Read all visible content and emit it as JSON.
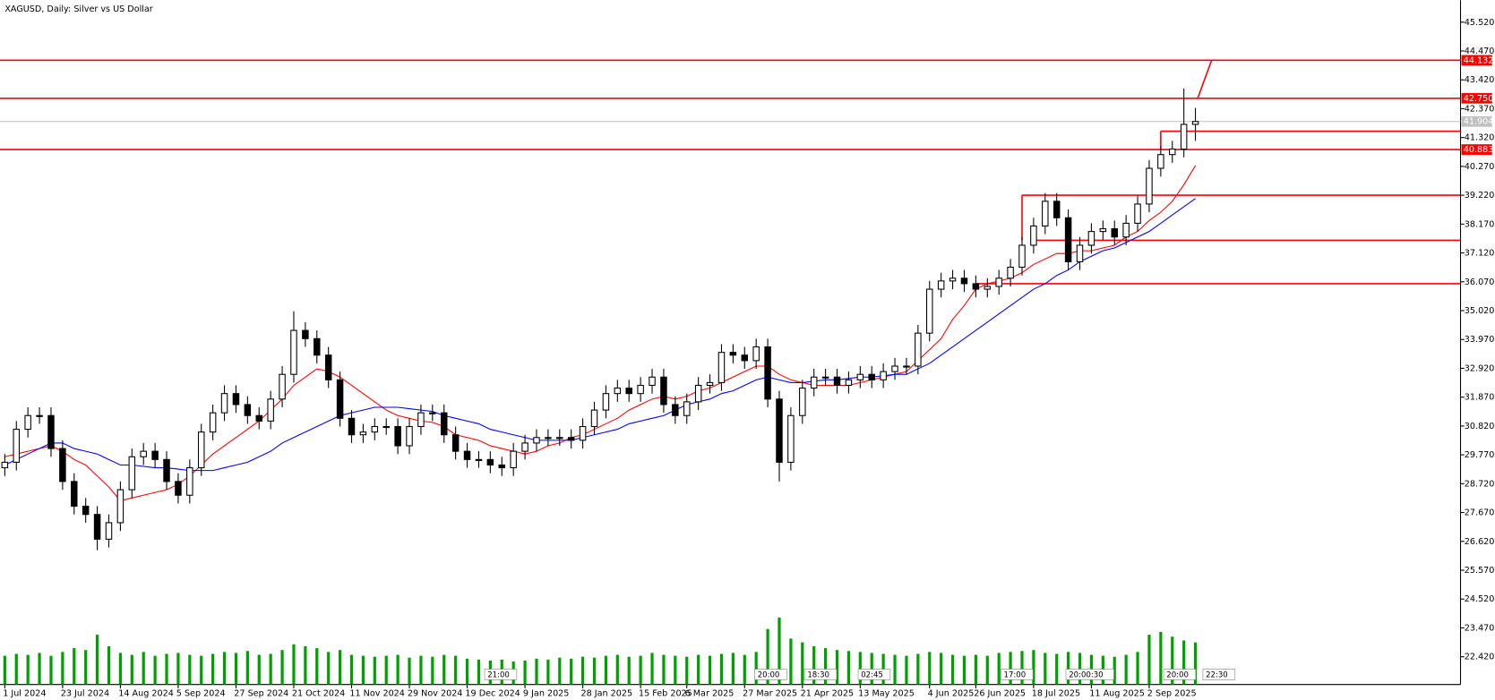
{
  "chart_data": {
    "type": "candlestick",
    "title": "XAGUSD, Daily:  Silver vs US Dollar",
    "categories": [
      "1 Jul 2024",
      null,
      null,
      null,
      null,
      "23 Jul 2024",
      null,
      null,
      null,
      null,
      "14 Aug 2024",
      null,
      null,
      null,
      null,
      "5 Sep 2024",
      null,
      null,
      null,
      null,
      "27 Sep 2024",
      null,
      null,
      null,
      null,
      "21 Oct 2024",
      null,
      null,
      null,
      null,
      "11 Nov 2024",
      null,
      null,
      null,
      null,
      "29 Nov 2024",
      null,
      null,
      null,
      null,
      "19 Dec 2024",
      null,
      null,
      null,
      null,
      "9 Jan 2025",
      null,
      null,
      null,
      null,
      "28 Jan 2025",
      null,
      null,
      null,
      null,
      "15 Feb 2025",
      null,
      null,
      null,
      "6 Mar 2025",
      null,
      null,
      null,
      null,
      "27 Mar 2025",
      null,
      null,
      null,
      null,
      "21 Apr 2025",
      null,
      null,
      null,
      null,
      "13 May 2025",
      null,
      null,
      null,
      null,
      null,
      "4 Jun 2025",
      null,
      null,
      null,
      "26 Jun 2025",
      null,
      null,
      null,
      null,
      "18 Jul 2025",
      null,
      null,
      null,
      null,
      "11 Aug 2025",
      null,
      null,
      null,
      null,
      "2 Sep 2025",
      null,
      null,
      null,
      null
    ],
    "open": [
      29.3,
      29.5,
      30.7,
      31.2,
      31.2,
      30.0,
      28.8,
      27.9,
      27.6,
      26.7,
      27.3,
      28.5,
      29.7,
      29.9,
      29.6,
      28.8,
      28.3,
      29.3,
      30.6,
      31.3,
      32.0,
      31.6,
      31.2,
      31.0,
      31.8,
      32.7,
      34.3,
      34.0,
      33.4,
      32.5,
      31.1,
      30.5,
      30.6,
      30.8,
      30.8,
      30.1,
      30.8,
      31.3,
      31.3,
      30.5,
      29.9,
      29.6,
      29.6,
      29.4,
      29.3,
      29.9,
      30.2,
      30.4,
      30.4,
      30.4,
      30.3,
      30.8,
      31.4,
      32.0,
      32.2,
      32.0,
      32.3,
      32.6,
      31.6,
      31.2,
      31.7,
      32.3,
      32.4,
      33.5,
      33.4,
      33.2,
      33.7,
      31.8,
      29.5,
      31.2,
      32.2,
      32.6,
      32.6,
      32.3,
      32.5,
      32.7,
      32.5,
      32.8,
      33.0,
      33.0,
      34.2,
      35.8,
      36.1,
      36.2,
      36.0,
      35.8,
      35.9,
      36.2,
      36.6,
      37.4,
      38.1,
      39.0,
      38.4,
      36.8,
      37.4,
      37.9,
      38.0,
      37.7,
      38.2,
      38.9,
      40.2,
      40.7,
      40.9,
      41.8
    ],
    "high": [
      29.8,
      31.0,
      31.5,
      31.5,
      31.5,
      30.3,
      29.1,
      28.2,
      27.9,
      27.6,
      28.8,
      30.0,
      30.2,
      30.2,
      29.9,
      29.1,
      29.6,
      30.9,
      31.6,
      32.3,
      32.3,
      31.9,
      31.5,
      32.1,
      33.0,
      35.0,
      34.6,
      34.3,
      33.7,
      32.8,
      31.4,
      30.9,
      31.1,
      31.1,
      31.1,
      31.1,
      31.6,
      31.6,
      31.6,
      30.8,
      30.2,
      29.9,
      29.9,
      29.7,
      30.2,
      30.5,
      30.7,
      30.7,
      30.7,
      30.7,
      31.1,
      31.7,
      32.3,
      32.5,
      32.5,
      32.6,
      32.9,
      32.9,
      31.9,
      32.0,
      32.6,
      32.7,
      33.8,
      33.8,
      33.7,
      34.0,
      34.0,
      32.1,
      31.5,
      32.5,
      32.9,
      32.9,
      32.9,
      32.8,
      33.0,
      33.0,
      33.1,
      33.3,
      33.3,
      34.5,
      36.1,
      36.4,
      36.5,
      36.5,
      36.3,
      36.2,
      36.5,
      36.9,
      37.7,
      38.4,
      39.3,
      39.3,
      38.7,
      37.7,
      38.2,
      38.3,
      38.3,
      38.5,
      39.2,
      40.5,
      41.0,
      41.2,
      43.1,
      42.4
    ],
    "low": [
      29.0,
      29.2,
      30.4,
      30.9,
      29.7,
      28.5,
      27.6,
      27.3,
      26.3,
      26.4,
      27.0,
      28.2,
      29.4,
      29.3,
      28.5,
      28.0,
      28.0,
      29.0,
      30.3,
      31.0,
      31.3,
      30.9,
      30.7,
      30.7,
      31.5,
      32.4,
      33.7,
      33.1,
      32.2,
      30.8,
      30.2,
      30.2,
      30.3,
      30.5,
      29.8,
      29.8,
      30.5,
      31.0,
      30.2,
      29.6,
      29.3,
      29.3,
      29.1,
      29.0,
      29.0,
      29.6,
      29.9,
      30.1,
      30.1,
      30.0,
      30.0,
      30.5,
      31.1,
      31.7,
      31.7,
      31.7,
      32.0,
      31.3,
      30.9,
      30.9,
      31.4,
      32.0,
      32.1,
      33.1,
      32.9,
      32.9,
      31.5,
      28.8,
      29.2,
      30.9,
      31.9,
      32.3,
      32.0,
      32.0,
      32.2,
      32.2,
      32.2,
      32.5,
      32.7,
      32.7,
      33.9,
      35.5,
      35.8,
      35.7,
      35.5,
      35.5,
      35.6,
      35.9,
      36.3,
      37.1,
      37.8,
      38.1,
      36.5,
      36.5,
      37.1,
      37.6,
      37.4,
      37.4,
      37.9,
      38.6,
      39.9,
      40.4,
      40.6,
      41.2
    ],
    "close": [
      29.5,
      30.7,
      31.2,
      31.2,
      30.0,
      28.8,
      27.9,
      27.6,
      26.7,
      27.3,
      28.5,
      29.7,
      29.9,
      29.6,
      28.8,
      28.3,
      29.3,
      30.6,
      31.3,
      32.0,
      31.6,
      31.2,
      31.0,
      31.8,
      32.7,
      34.3,
      34.0,
      33.4,
      32.5,
      31.1,
      30.5,
      30.6,
      30.8,
      30.8,
      30.1,
      30.8,
      31.3,
      31.3,
      30.5,
      29.9,
      29.6,
      29.6,
      29.4,
      29.3,
      29.9,
      30.2,
      30.4,
      30.4,
      30.4,
      30.3,
      30.8,
      31.4,
      32.0,
      32.2,
      32.0,
      32.3,
      32.6,
      31.6,
      31.2,
      31.7,
      32.3,
      32.4,
      33.5,
      33.4,
      33.2,
      33.7,
      31.8,
      29.5,
      31.2,
      32.2,
      32.6,
      32.6,
      32.3,
      32.5,
      32.7,
      32.5,
      32.8,
      33.0,
      33.0,
      34.2,
      35.8,
      36.1,
      36.2,
      36.0,
      35.8,
      35.9,
      36.2,
      36.6,
      37.4,
      38.1,
      39.0,
      38.4,
      36.8,
      37.4,
      37.9,
      38.0,
      37.7,
      38.2,
      38.9,
      40.2,
      40.7,
      40.9,
      41.8,
      41.904
    ],
    "volume": [
      30000,
      32000,
      31000,
      33000,
      30000,
      34000,
      38000,
      36000,
      52000,
      40000,
      33000,
      31000,
      34000,
      30000,
      32000,
      33000,
      31000,
      30000,
      32000,
      34000,
      33000,
      35000,
      31000,
      32000,
      36000,
      42000,
      40000,
      38000,
      34000,
      36000,
      31000,
      30000,
      29000,
      30000,
      31000,
      28000,
      30000,
      29000,
      31000,
      30000,
      27000,
      26000,
      25000,
      26000,
      24000,
      25000,
      27000,
      26000,
      28000,
      27000,
      29000,
      28000,
      30000,
      31000,
      29000,
      30000,
      33000,
      31000,
      30000,
      29000,
      31000,
      30000,
      32000,
      33000,
      31000,
      34000,
      58000,
      70000,
      48000,
      44000,
      40000,
      38000,
      36000,
      35000,
      34000,
      33000,
      32000,
      31000,
      30000,
      32000,
      34000,
      33000,
      31000,
      30000,
      31000,
      30000,
      33000,
      34000,
      35000,
      36000,
      33000,
      32000,
      34000,
      33000,
      31000,
      30000,
      29000,
      31000,
      34000,
      52000,
      55000,
      50000,
      46000,
      44000
    ],
    "volume_lim": [
      0,
      100000
    ],
    "volume_color": "#00a000",
    "series": [
      {
        "name": "MA 20",
        "color": "#ff0000",
        "values": [
          29.7,
          29.8,
          29.9,
          30.0,
          30.1,
          29.9,
          29.6,
          29.4,
          29.0,
          28.6,
          28.1,
          28.2,
          28.3,
          28.4,
          28.5,
          28.7,
          29.0,
          29.4,
          29.8,
          30.1,
          30.4,
          30.7,
          31.0,
          31.4,
          31.8,
          32.3,
          32.6,
          32.9,
          32.8,
          32.6,
          32.3,
          32.0,
          31.7,
          31.4,
          31.2,
          31.1,
          31.0,
          30.95,
          30.8,
          30.5,
          30.4,
          30.3,
          30.1,
          30.0,
          29.9,
          29.8,
          29.9,
          30.1,
          30.2,
          30.4,
          30.5,
          30.7,
          30.9,
          31.1,
          31.4,
          31.6,
          31.8,
          31.9,
          31.8,
          31.9,
          32.1,
          32.2,
          32.4,
          32.6,
          32.8,
          33.0,
          33.0,
          32.7,
          32.5,
          32.4,
          32.3,
          32.3,
          32.3,
          32.3,
          32.4,
          32.5,
          32.6,
          32.7,
          32.8,
          33.2,
          33.6,
          34.0,
          34.7,
          35.2,
          35.8,
          36.0,
          36.1,
          36.2,
          36.4,
          36.7,
          36.9,
          37.1,
          37.1,
          37.2,
          37.2,
          37.3,
          37.4,
          37.7,
          37.9,
          38.3,
          38.6,
          39.0,
          39.6,
          40.3
        ]
      },
      {
        "name": "MA 50",
        "color": "#0000ff",
        "values": [
          29.4,
          29.6,
          29.8,
          30.0,
          30.2,
          30.2,
          30.0,
          29.9,
          29.8,
          29.6,
          29.4,
          29.4,
          29.35,
          29.3,
          29.3,
          29.25,
          29.2,
          29.2,
          29.2,
          29.3,
          29.4,
          29.5,
          29.7,
          29.9,
          30.2,
          30.4,
          30.6,
          30.8,
          31.0,
          31.2,
          31.3,
          31.4,
          31.5,
          31.5,
          31.5,
          31.45,
          31.4,
          31.35,
          31.2,
          31.1,
          31.0,
          30.9,
          30.7,
          30.6,
          30.5,
          30.4,
          30.3,
          30.3,
          30.3,
          30.3,
          30.4,
          30.5,
          30.6,
          30.7,
          30.9,
          31.0,
          31.1,
          31.2,
          31.4,
          31.6,
          31.7,
          31.8,
          32.0,
          32.1,
          32.3,
          32.5,
          32.6,
          32.5,
          32.4,
          32.4,
          32.45,
          32.5,
          32.5,
          32.55,
          32.6,
          32.6,
          32.65,
          32.7,
          32.7,
          32.9,
          33.1,
          33.4,
          33.7,
          34.0,
          34.3,
          34.6,
          34.9,
          35.2,
          35.5,
          35.8,
          36.0,
          36.3,
          36.5,
          36.8,
          37.0,
          37.2,
          37.3,
          37.5,
          37.7,
          37.9,
          38.2,
          38.5,
          38.8,
          39.1
        ]
      }
    ],
    "ylim": [
      21.41,
      46.32
    ],
    "yticks": [
      {
        "value": 45.52,
        "label": "45.520"
      },
      {
        "value": 44.47,
        "label": "44.470"
      },
      {
        "value": 43.42,
        "label": "43.420"
      },
      {
        "value": 42.37,
        "label": "42.370"
      },
      {
        "value": 41.32,
        "label": "41.320"
      },
      {
        "value": 40.27,
        "label": "40.270"
      },
      {
        "value": 39.22,
        "label": "39.220"
      },
      {
        "value": 38.17,
        "label": "38.170"
      },
      {
        "value": 37.12,
        "label": "37.120"
      },
      {
        "value": 36.07,
        "label": "36.070"
      },
      {
        "value": 35.02,
        "label": "35.020"
      },
      {
        "value": 33.97,
        "label": "33.970"
      },
      {
        "value": 32.92,
        "label": "32.920"
      },
      {
        "value": 31.87,
        "label": "31.870"
      },
      {
        "value": 30.82,
        "label": "30.820"
      },
      {
        "value": 29.77,
        "label": "29.770"
      },
      {
        "value": 28.72,
        "label": "28.720"
      },
      {
        "value": 27.67,
        "label": "27.670"
      },
      {
        "value": 26.62,
        "label": "26.620"
      },
      {
        "value": 25.57,
        "label": "25.570"
      },
      {
        "value": 24.52,
        "label": "24.520"
      },
      {
        "value": 23.47,
        "label": "23.470"
      },
      {
        "value": 22.42,
        "label": "22.420"
      }
    ],
    "levels": [
      {
        "price": 44.132,
        "color": "#ff0000"
      },
      {
        "price": {
          "value": 42.75,
          "label": "42.750"
        },
        "color": "#ff0000"
      },
      {
        "price": 40.883,
        "color": "#ff0000"
      },
      {
        "price": 41.904,
        "color": "#c0c0c0"
      }
    ],
    "segments": [
      {
        "from": 100,
        "price": 41.55
      },
      {
        "from": 88,
        "price": 39.22
      },
      {
        "from": 89,
        "price": 37.58
      },
      {
        "from": 84,
        "price": 36.0
      }
    ],
    "edges": [
      {
        "at": 88,
        "top": 39.22,
        "bottom": 37.58
      },
      {
        "at": 100,
        "top": 41.55,
        "bottom": 40.883
      }
    ],
    "trend_line": {
      "x": [
        103.2,
        104.4
      ],
      "y": [
        42.75,
        44.132
      ]
    },
    "session_labels": [
      "21:00",
      "20:00",
      "18:30",
      "02:45",
      "17:00",
      "20:00:30",
      "20:00",
      "22:30"
    ]
  }
}
